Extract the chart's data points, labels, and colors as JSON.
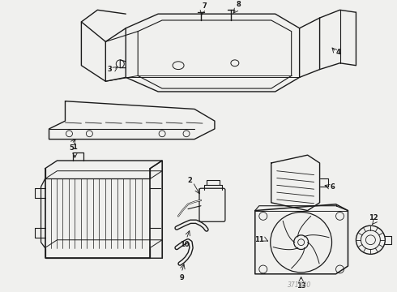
{
  "bg_color": "#f0f0ee",
  "line_color": "#1a1a1a",
  "watermark": "371030",
  "figsize": [
    4.9,
    3.6
  ],
  "dpi": 100,
  "label_fs": 6.0
}
